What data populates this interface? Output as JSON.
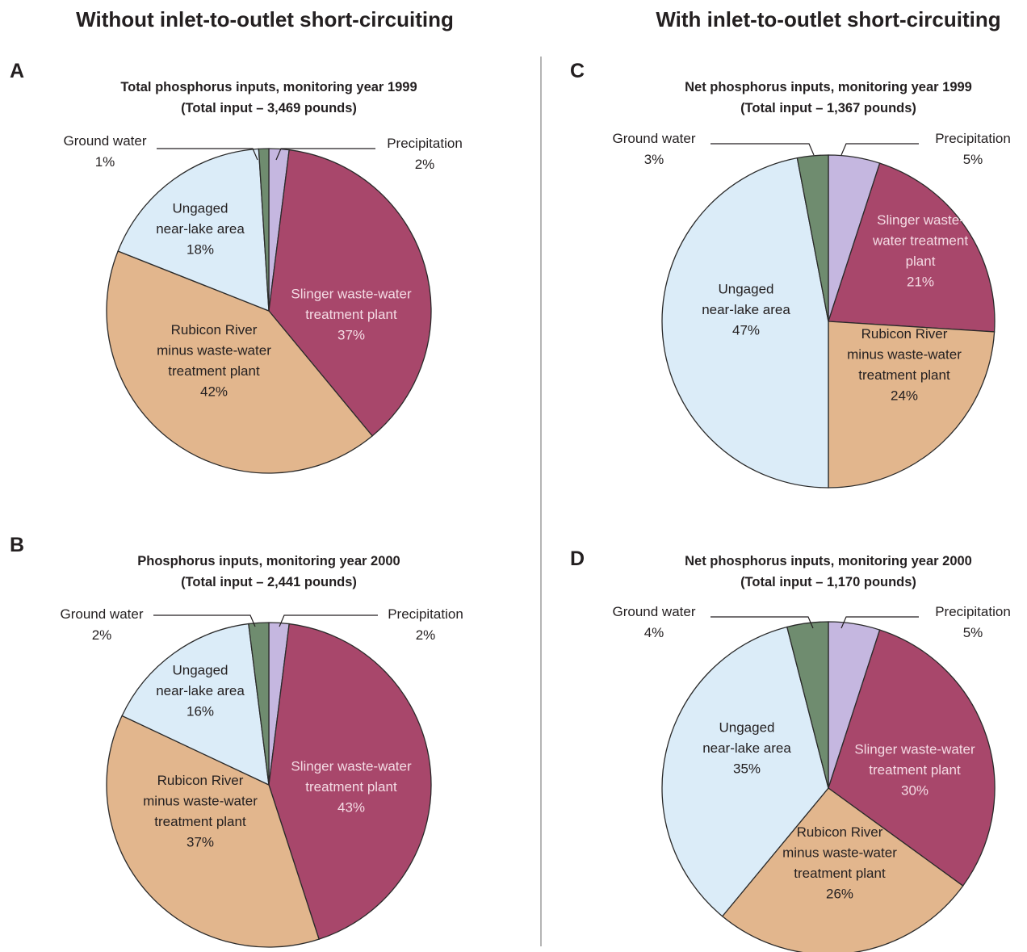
{
  "headers": {
    "left": "Without inlet-to-outlet short-circuiting",
    "right": "With inlet-to-outlet short-circuiting"
  },
  "colors": {
    "ground_water": "#6f8c6f",
    "precipitation": "#c5b7e0",
    "slinger": "#a8476b",
    "rubicon": "#e2b68d",
    "ungaged": "#dbecf8"
  },
  "chart_data": [
    {
      "type": "pie",
      "panel": "A",
      "title": "Total phosphorus inputs, monitoring year 1999",
      "subtitle": "(Total input – 3,469 pounds)",
      "slices": [
        {
          "key": "ground_water",
          "lines": [
            "Ground water"
          ],
          "pct_label": "1%",
          "value": 1
        },
        {
          "key": "precipitation",
          "lines": [
            "Precipitation"
          ],
          "pct_label": "2%",
          "value": 2
        },
        {
          "key": "slinger",
          "lines": [
            "Slinger waste-water",
            "treatment plant"
          ],
          "pct_label": "37%",
          "value": 37
        },
        {
          "key": "rubicon",
          "lines": [
            "Rubicon River",
            "minus waste-water",
            "treatment plant"
          ],
          "pct_label": "42%",
          "value": 42
        },
        {
          "key": "ungaged",
          "lines": [
            "Ungaged",
            "near-lake area"
          ],
          "pct_label": "18%",
          "value": 18
        }
      ]
    },
    {
      "type": "pie",
      "panel": "B",
      "title": "Phosphorus inputs, monitoring year 2000",
      "subtitle": "(Total input – 2,441 pounds)",
      "slices": [
        {
          "key": "ground_water",
          "lines": [
            "Ground water"
          ],
          "pct_label": "2%",
          "value": 2
        },
        {
          "key": "precipitation",
          "lines": [
            "Precipitation"
          ],
          "pct_label": "2%",
          "value": 2
        },
        {
          "key": "slinger",
          "lines": [
            "Slinger waste-water",
            "treatment plant"
          ],
          "pct_label": "43%",
          "value": 43
        },
        {
          "key": "rubicon",
          "lines": [
            "Rubicon River",
            "minus waste-water",
            "treatment plant"
          ],
          "pct_label": "37%",
          "value": 37
        },
        {
          "key": "ungaged",
          "lines": [
            "Ungaged",
            "near-lake area"
          ],
          "pct_label": "16%",
          "value": 16
        }
      ]
    },
    {
      "type": "pie",
      "panel": "C",
      "title": "Net phosphorus inputs, monitoring year 1999",
      "subtitle": "(Total input – 1,367 pounds)",
      "slices": [
        {
          "key": "ground_water",
          "lines": [
            "Ground water"
          ],
          "pct_label": "3%",
          "value": 3
        },
        {
          "key": "precipitation",
          "lines": [
            "Precipitation"
          ],
          "pct_label": "5%",
          "value": 5
        },
        {
          "key": "slinger",
          "lines": [
            "Slinger waste-",
            "water treatment",
            "plant"
          ],
          "pct_label": "21%",
          "value": 21
        },
        {
          "key": "rubicon",
          "lines": [
            "Rubicon River",
            "minus waste-water",
            "treatment plant"
          ],
          "pct_label": "24%",
          "value": 24
        },
        {
          "key": "ungaged",
          "lines": [
            "Ungaged",
            "near-lake area"
          ],
          "pct_label": "47%",
          "value": 47
        }
      ]
    },
    {
      "type": "pie",
      "panel": "D",
      "title": "Net phosphorus inputs, monitoring year 2000",
      "subtitle": "(Total input – 1,170 pounds)",
      "slices": [
        {
          "key": "ground_water",
          "lines": [
            "Ground water"
          ],
          "pct_label": "4%",
          "value": 4
        },
        {
          "key": "precipitation",
          "lines": [
            "Precipitation"
          ],
          "pct_label": "5%",
          "value": 5
        },
        {
          "key": "slinger",
          "lines": [
            "Slinger waste-water",
            "treatment plant"
          ],
          "pct_label": "30%",
          "value": 30
        },
        {
          "key": "rubicon",
          "lines": [
            "Rubicon River",
            "minus waste-water",
            "treatment plant"
          ],
          "pct_label": "26%",
          "value": 26
        },
        {
          "key": "ungaged",
          "lines": [
            "Ungaged",
            "near-lake area"
          ],
          "pct_label": "35%",
          "value": 35
        }
      ]
    }
  ]
}
